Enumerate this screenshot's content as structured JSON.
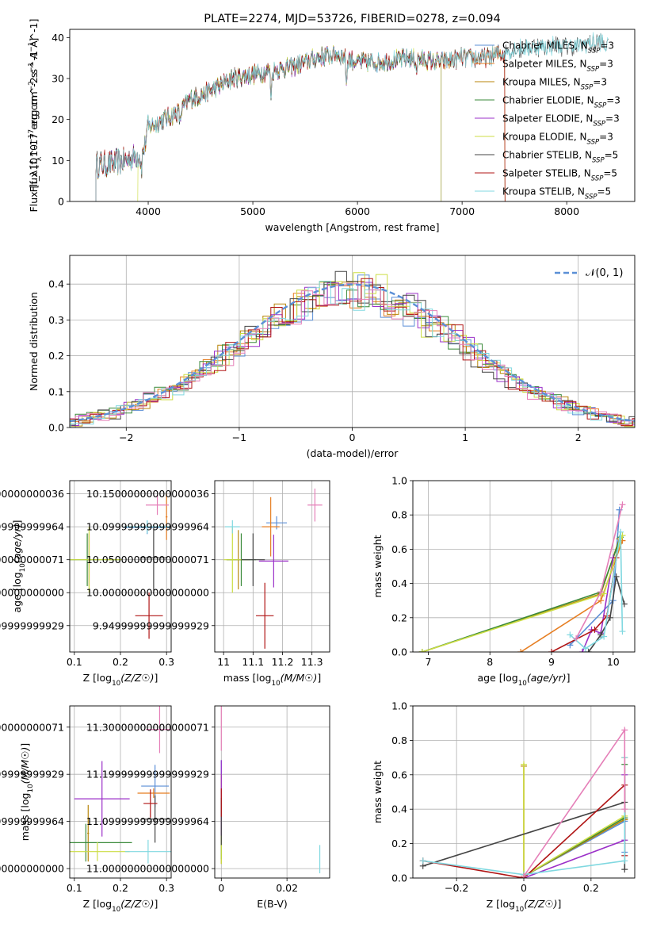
{
  "colors": [
    "#5b8fd6",
    "#e67e22",
    "#b8860b",
    "#3a8a3a",
    "#9b30c8",
    "#ccdd44",
    "#444444",
    "#b01515",
    "#80d8e0",
    "#e57fb8"
  ],
  "chart_data": [
    {
      "id": "spectrum",
      "type": "line",
      "title": "PLATE=2274, MJD=53726, FIBERID=0278, z=0.094",
      "xlabel": "wavelength [Angstrom, rest frame]",
      "ylabel": "Flux [f_λ10^-17 erg cm^-2 s^-1 A^-1]",
      "xlim": [
        3250,
        8650
      ],
      "ylim": [
        0,
        42
      ],
      "xticks": [
        4000,
        5000,
        6000,
        7000,
        8000
      ],
      "yticks": [
        0,
        10,
        20,
        30,
        40
      ],
      "grid": false,
      "legend": "upper right",
      "continuum": [
        [
          3500,
          9
        ],
        [
          3600,
          9
        ],
        [
          3800,
          10
        ],
        [
          3950,
          12
        ],
        [
          4000,
          18
        ],
        [
          4150,
          20
        ],
        [
          4300,
          22
        ],
        [
          4400,
          25
        ],
        [
          4600,
          27
        ],
        [
          4800,
          30
        ],
        [
          5000,
          31
        ],
        [
          5200,
          32
        ],
        [
          5400,
          33
        ],
        [
          5600,
          35
        ],
        [
          5800,
          36
        ],
        [
          6000,
          34
        ],
        [
          6200,
          34
        ],
        [
          6500,
          35
        ],
        [
          6800,
          34
        ],
        [
          7000,
          35
        ],
        [
          7200,
          35
        ],
        [
          7500,
          37
        ],
        [
          7800,
          38
        ],
        [
          8100,
          38
        ],
        [
          8300,
          39
        ],
        [
          8400,
          38
        ]
      ],
      "absorption": [
        [
          3935,
          4
        ],
        [
          4305,
          3
        ],
        [
          5175,
          6
        ],
        [
          5895,
          6
        ],
        [
          6565,
          3
        ]
      ],
      "series": [
        {
          "name": "Chabrier MILES",
          "nssp": "3",
          "range": [
            3500,
            7410
          ]
        },
        {
          "name": "Salpeter MILES",
          "nssp": "3",
          "range": [
            3500,
            7410
          ]
        },
        {
          "name": "Kroupa MILES",
          "nssp": "3",
          "range": [
            3500,
            7410
          ]
        },
        {
          "name": "Chabrier ELODIE",
          "nssp": "3",
          "range": [
            3500,
            6800
          ]
        },
        {
          "name": "Salpeter ELODIE",
          "nssp": "3",
          "range": [
            3500,
            6800
          ]
        },
        {
          "name": "Kroupa ELODIE",
          "nssp": "3",
          "range": [
            3900,
            6800
          ]
        },
        {
          "name": "Chabrier STELIB",
          "nssp": "5",
          "range": [
            3500,
            8400
          ]
        },
        {
          "name": "Salpeter STELIB",
          "nssp": "5",
          "range": [
            3500,
            7410
          ]
        },
        {
          "name": "Kroupa STELIB",
          "nssp": "5",
          "range": [
            3500,
            8400
          ]
        }
      ]
    },
    {
      "id": "residuals",
      "type": "histogram",
      "xlabel": "(data-model)/error",
      "ylabel": "Normed distribution",
      "xlim": [
        -2.5,
        2.5
      ],
      "ylim": [
        0,
        0.48
      ],
      "xticks": [
        -2,
        -1,
        0,
        1,
        2
      ],
      "yticks": [
        0.0,
        0.1,
        0.2,
        0.3,
        0.4
      ],
      "grid": true,
      "legend": "upper right",
      "gaussian_label": "𝒩(0, 1)",
      "bin_width": 0.1
    },
    {
      "id": "age-Z",
      "type": "scatter-errorbar",
      "xlabel": "Z [log10(Z/Z☉)]",
      "ylabel": "age  [log10(age/yr)]",
      "xlim": [
        0.09,
        0.31
      ],
      "ylim": [
        9.91,
        10.17
      ],
      "xticks": [
        0.1,
        0.2,
        0.3
      ],
      "yticks": [
        9.95,
        10.0,
        10.05,
        10.1,
        10.15
      ],
      "grid": true,
      "points": [
        {
          "x": 0.258,
          "y": 10.099,
          "xe": 0.05,
          "ye": 0.01
        },
        {
          "x": 0.3,
          "y": 10.115,
          "xe": 0.002,
          "ye": 0.035
        },
        {
          "x": 0.132,
          "y": 10.05,
          "xe": 0.005,
          "ye": 0.04
        },
        {
          "x": 0.128,
          "y": 10.05,
          "xe": 0.07,
          "ye": 0.04
        },
        {
          "x": 0.132,
          "y": 10.05,
          "xe": 0.002,
          "ye": 0.04
        },
        {
          "x": 0.132,
          "y": 10.05,
          "xe": 0.07,
          "ye": 0.05
        },
        {
          "x": 0.272,
          "y": 10.053,
          "xe": 0.03,
          "ye": 0.05
        },
        {
          "x": 0.262,
          "y": 9.965,
          "xe": 0.03,
          "ye": 0.035
        },
        {
          "x": 0.258,
          "y": 10.1,
          "xe": 0.05,
          "ye": 0.01
        },
        {
          "x": 0.28,
          "y": 10.133,
          "xe": 0.025,
          "ye": 0.015
        }
      ]
    },
    {
      "id": "age-mass",
      "type": "scatter-errorbar",
      "xlabel": "mass [log10(M/M☉)]",
      "xlim": [
        10.97,
        11.36
      ],
      "ylim": [
        9.91,
        10.17
      ],
      "xticks": [
        11.0,
        11.1,
        11.2,
        11.3
      ],
      "yticks": [
        9.95,
        10.0,
        10.05,
        10.1,
        10.15
      ],
      "grid": true,
      "points": [
        {
          "x": 11.18,
          "y": 10.106,
          "xe": 0.035,
          "ye": 0.01
        },
        {
          "x": 11.16,
          "y": 10.1,
          "xe": 0.03,
          "ye": 0.045
        },
        {
          "x": 11.05,
          "y": 10.05,
          "xe": 0.04,
          "ye": 0.045
        },
        {
          "x": 11.06,
          "y": 10.05,
          "xe": 0.05,
          "ye": 0.04
        },
        {
          "x": 11.17,
          "y": 10.048,
          "xe": 0.05,
          "ye": 0.04
        },
        {
          "x": 11.03,
          "y": 10.05,
          "xe": 0.03,
          "ye": 0.05
        },
        {
          "x": 11.1,
          "y": 10.05,
          "xe": 0.04,
          "ye": 0.04
        },
        {
          "x": 11.14,
          "y": 9.965,
          "xe": 0.03,
          "ye": 0.05
        },
        {
          "x": 11.03,
          "y": 10.1,
          "xe": 0.025,
          "ye": 0.01
        },
        {
          "x": 11.31,
          "y": 10.133,
          "xe": 0.025,
          "ye": 0.025
        }
      ]
    },
    {
      "id": "massweight-age",
      "type": "line",
      "xlabel": "age  [log10(age/yr)]",
      "ylabel": "mass weight",
      "xlim": [
        6.75,
        10.35
      ],
      "ylim": [
        0,
        1.0
      ],
      "xticks": [
        7,
        8,
        9,
        10
      ],
      "yticks": [
        0.0,
        0.2,
        0.4,
        0.6,
        0.8,
        1.0
      ],
      "grid": true,
      "lines": [
        [
          [
            9.3,
            0.04
          ],
          [
            10.0,
            0.3
          ],
          [
            10.1,
            0.83
          ]
        ],
        [
          [
            8.5,
            0.0
          ],
          [
            9.8,
            0.3
          ],
          [
            10.15,
            0.65
          ]
        ],
        [
          [
            6.9,
            0.0
          ],
          [
            9.8,
            0.34
          ],
          [
            10.1,
            0.66
          ]
        ],
        [
          [
            6.9,
            0.0
          ],
          [
            9.8,
            0.35
          ],
          [
            10.12,
            0.67
          ]
        ],
        [
          [
            9.5,
            0.0
          ],
          [
            9.65,
            0.13
          ],
          [
            9.8,
            0.11
          ],
          [
            10.0,
            0.55
          ]
        ],
        [
          [
            6.9,
            0.0
          ],
          [
            9.85,
            0.34
          ],
          [
            10.15,
            0.68
          ]
        ],
        [
          [
            9.6,
            0.0
          ],
          [
            9.8,
            0.1
          ],
          [
            9.95,
            0.2
          ],
          [
            10.05,
            0.44
          ],
          [
            10.18,
            0.28
          ]
        ],
        [
          [
            9.0,
            0.0
          ],
          [
            9.7,
            0.13
          ],
          [
            9.9,
            0.21
          ],
          [
            10.05,
            0.55
          ]
        ],
        [
          [
            9.3,
            0.1
          ],
          [
            9.55,
            0.02
          ],
          [
            9.85,
            0.09
          ],
          [
            10.12,
            0.7
          ],
          [
            10.15,
            0.12
          ]
        ],
        [
          [
            9.4,
            0.08
          ],
          [
            9.8,
            0.35
          ],
          [
            10.15,
            0.86
          ]
        ]
      ]
    },
    {
      "id": "mass-Z",
      "type": "scatter-errorbar",
      "xlabel": "Z [log10(Z/Z☉)]",
      "ylabel": "mass [log10(M/M☉)]",
      "xlim": [
        0.09,
        0.31
      ],
      "ylim": [
        10.98,
        11.345
      ],
      "xticks": [
        0.1,
        0.2,
        0.3
      ],
      "yticks": [
        11.0,
        11.1,
        11.2,
        11.3
      ],
      "grid": true,
      "points": [
        {
          "x": 0.275,
          "y": 11.175,
          "xe": 0.03,
          "ye": 0.045
        },
        {
          "x": 0.272,
          "y": 11.16,
          "xe": 0.035,
          "ye": 0.01
        },
        {
          "x": 0.13,
          "y": 11.075,
          "xe": 0.002,
          "ye": 0.06
        },
        {
          "x": 0.125,
          "y": 11.055,
          "xe": 0.1,
          "ye": 0.04
        },
        {
          "x": 0.16,
          "y": 11.148,
          "xe": 0.06,
          "ye": 0.08
        },
        {
          "x": 0.15,
          "y": 11.036,
          "xe": 0.07,
          "ye": 0.02
        },
        {
          "x": 0.275,
          "y": 11.105,
          "xe": 0.03,
          "ye": 0.05
        },
        {
          "x": 0.265,
          "y": 11.138,
          "xe": 0.015,
          "ye": 0.03
        },
        {
          "x": 0.26,
          "y": 11.036,
          "xe": 0.05,
          "ye": 0.025
        },
        {
          "x": 0.285,
          "y": 11.295,
          "xe": 0.03,
          "ye": 0.05
        }
      ]
    },
    {
      "id": "mass-EBV",
      "type": "scatter-errorbar",
      "xlabel": "E(B-V)",
      "xlim": [
        -0.002,
        0.033
      ],
      "ylim": [
        10.98,
        11.345
      ],
      "xticks": [
        0.0,
        0.02
      ],
      "yticks": [
        11.0,
        11.1,
        11.2,
        11.3
      ],
      "grid": true,
      "points": [
        {
          "x": 0.0,
          "y": 11.18,
          "xe": 0,
          "ye": 0.05
        },
        {
          "x": 0.0,
          "y": 11.16,
          "xe": 0,
          "ye": 0.04
        },
        {
          "x": 0.0,
          "y": 11.07,
          "xe": 0,
          "ye": 0.06
        },
        {
          "x": 0.0,
          "y": 11.06,
          "xe": 0,
          "ye": 0.04
        },
        {
          "x": 0.0,
          "y": 11.15,
          "xe": 0,
          "ye": 0.08
        },
        {
          "x": 0.0,
          "y": 11.04,
          "xe": 0,
          "ye": 0.03
        },
        {
          "x": 0.0,
          "y": 11.1,
          "xe": 0,
          "ye": 0.05
        },
        {
          "x": 0.0,
          "y": 11.14,
          "xe": 0,
          "ye": 0.03
        },
        {
          "x": 0.03,
          "y": 11.02,
          "xe": 0,
          "ye": 0.03
        },
        {
          "x": 0.0,
          "y": 11.3,
          "xe": 0,
          "ye": 0.05
        }
      ]
    },
    {
      "id": "massweight-Z",
      "type": "line",
      "xlabel": "Z [log10(Z/Z☉)]",
      "ylabel": "mass weight",
      "xlim": [
        -0.33,
        0.33
      ],
      "ylim": [
        0,
        1.0
      ],
      "xticks": [
        -0.2,
        0.0,
        0.2
      ],
      "yticks": [
        0.0,
        0.2,
        0.4,
        0.6,
        0.8,
        1.0
      ],
      "grid": true,
      "lines": [
        [
          [
            0.0,
            0.01
          ],
          [
            0.3,
            0.33
          ],
          [
            0.3,
            0.15
          ]
        ],
        [
          [
            0.0,
            0.01
          ],
          [
            0.3,
            0.34
          ],
          [
            0.3,
            0.7
          ]
        ],
        [
          [
            0.0,
            0.65
          ],
          [
            0.0,
            0.01
          ],
          [
            0.3,
            0.34
          ]
        ],
        [
          [
            0.0,
            0.01
          ],
          [
            0.3,
            0.35
          ],
          [
            0.3,
            0.66
          ]
        ],
        [
          [
            0.0,
            0.0
          ],
          [
            0.3,
            0.22
          ],
          [
            0.3,
            0.6
          ]
        ],
        [
          [
            0.0,
            0.66
          ],
          [
            0.0,
            0.01
          ],
          [
            0.3,
            0.36
          ]
        ],
        [
          [
            -0.3,
            0.07
          ],
          [
            0.3,
            0.44
          ],
          [
            0.3,
            0.05
          ]
        ],
        [
          [
            -0.3,
            0.1
          ],
          [
            0.0,
            0.0
          ],
          [
            0.3,
            0.54
          ],
          [
            0.3,
            0.13
          ]
        ],
        [
          [
            -0.3,
            0.1
          ],
          [
            0.0,
            0.02
          ],
          [
            0.3,
            0.1
          ],
          [
            0.3,
            0.7
          ]
        ],
        [
          [
            0.0,
            0.01
          ],
          [
            0.3,
            0.86
          ],
          [
            0.3,
            0.4
          ]
        ]
      ]
    }
  ]
}
